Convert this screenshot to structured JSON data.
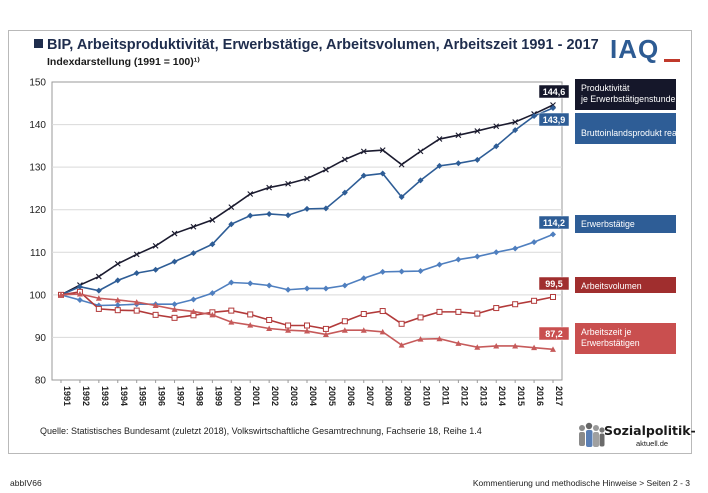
{
  "header": {
    "title": "BIP, Arbeitsproduktivität, Erwerbstätige, Arbeitsvolumen, Arbeitszeit 1991 - 2017",
    "subtitle": "Indexdarstellung (1991 = 100)¹⁾",
    "logo": "IAQ"
  },
  "source": "Quelle: Statistisches Bundesamt (zuletzt 2018), Volkswirtschaftliche Gesamtrechnung, Fachserie 18, Reihe 1.4",
  "brand": {
    "name": "Sozialpolitik-",
    "sub": "aktuell.de"
  },
  "footer": {
    "left": "abbIV66",
    "right": "Kommentierung und methodische Hinweise > Seiten 2 - 3"
  },
  "colors": {
    "productivity": "#1b1b2f",
    "gdp": "#2e5d96",
    "employed": "#4f7fbf",
    "volume": "#b23a3a",
    "hours": "#c65a5a"
  },
  "chart_data": {
    "type": "line",
    "ylim": [
      80,
      150
    ],
    "yticks": [
      80,
      90,
      100,
      110,
      120,
      130,
      140,
      150
    ],
    "x": [
      1991,
      1992,
      1993,
      1994,
      1995,
      1996,
      1997,
      1998,
      1999,
      2000,
      2001,
      2002,
      2003,
      2004,
      2005,
      2006,
      2007,
      2008,
      2009,
      2010,
      2011,
      2012,
      2013,
      2014,
      2015,
      2016,
      2017
    ],
    "series": [
      {
        "key": "productivity",
        "name": "Produktivität je Erwerbstätigenstunde",
        "marker": "x",
        "end_label": "144,6",
        "values": [
          100,
          102.3,
          104.3,
          107.3,
          109.5,
          111.5,
          114.4,
          116.0,
          117.6,
          120.6,
          123.7,
          125.2,
          126.1,
          127.3,
          129.4,
          131.8,
          133.7,
          134.0,
          130.6,
          133.7,
          136.6,
          137.5,
          138.5,
          139.6,
          140.6,
          142.5,
          144.6
        ]
      },
      {
        "key": "gdp",
        "name": "Bruttoinlandsprodukt real",
        "marker": "diamond",
        "end_label": "143,9",
        "values": [
          100,
          101.9,
          101.0,
          103.4,
          105.1,
          105.9,
          107.8,
          109.8,
          111.9,
          116.6,
          118.6,
          119.0,
          118.7,
          120.2,
          120.3,
          124.0,
          128.0,
          128.5,
          123.0,
          126.9,
          130.3,
          130.9,
          131.7,
          134.9,
          138.7,
          142.0,
          143.9
        ]
      },
      {
        "key": "employed",
        "name": "Erwerbstätige",
        "marker": "diamond",
        "end_label": "114,2",
        "values": [
          100,
          98.8,
          97.5,
          97.6,
          97.8,
          97.8,
          97.8,
          98.9,
          100.4,
          102.9,
          102.7,
          102.2,
          101.2,
          101.5,
          101.5,
          102.2,
          103.9,
          105.4,
          105.5,
          105.6,
          107.1,
          108.3,
          109.0,
          110.0,
          110.9,
          112.4,
          114.2
        ]
      },
      {
        "key": "volume",
        "name": "Arbeitsvolumen",
        "marker": "square",
        "end_label": "99,5",
        "values": [
          100,
          100.7,
          96.7,
          96.4,
          96.3,
          95.3,
          94.6,
          95.2,
          95.9,
          96.3,
          95.4,
          94.1,
          92.8,
          92.8,
          92.0,
          93.8,
          95.5,
          96.2,
          93.2,
          94.7,
          96.0,
          96.0,
          95.6,
          96.9,
          97.8,
          98.6,
          99.5
        ]
      },
      {
        "key": "hours",
        "name": "Arbeitszeit je Erwerbstätigen",
        "marker": "triangle",
        "end_label": "87,2",
        "values": [
          100,
          100.2,
          99.2,
          98.8,
          98.3,
          97.5,
          96.6,
          96.1,
          95.3,
          93.6,
          92.9,
          92.1,
          91.7,
          91.5,
          90.7,
          91.7,
          91.7,
          91.3,
          88.2,
          89.6,
          89.7,
          88.6,
          87.7,
          88.0,
          88.0,
          87.6,
          87.2
        ]
      }
    ]
  }
}
